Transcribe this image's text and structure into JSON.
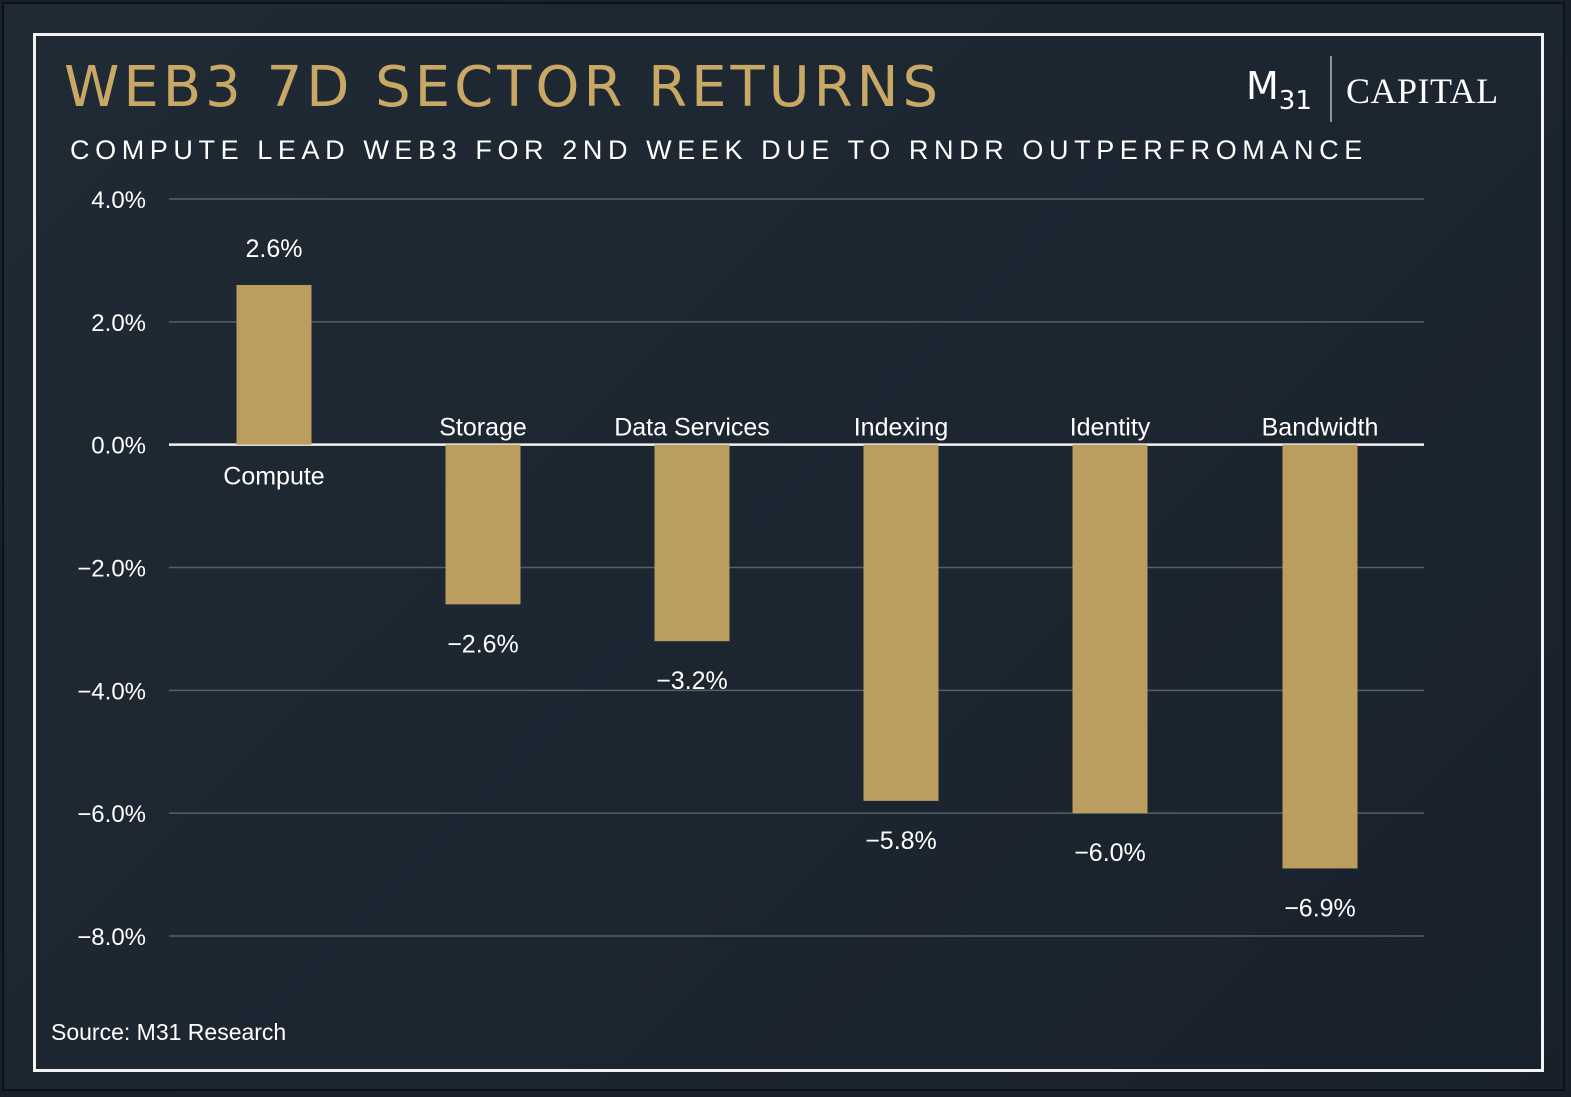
{
  "header": {
    "title": "WEB3 7D SECTOR RETURNS",
    "subtitle": "COMPUTE LEAD WEB3 FOR 2ND WEEK DUE TO RNDR OUTPERFROMANCE"
  },
  "logo": {
    "mark": "M",
    "mark_sub": "31",
    "wordmark": "CAPITAL"
  },
  "footer": {
    "source": "Source: M31 Research"
  },
  "colors": {
    "background": "#1d2731",
    "accent_gold": "#bb9d5f",
    "title_gold": "#c9a866",
    "gridline": "#56606a",
    "text": "#ffffff"
  },
  "chart_data": {
    "type": "bar",
    "title": "WEB3 7D SECTOR RETURNS",
    "subtitle": "COMPUTE LEAD WEB3 FOR 2ND WEEK DUE TO RNDR OUTPERFROMANCE",
    "xlabel": "",
    "ylabel": "",
    "categories": [
      "Compute",
      "Storage",
      "Data Services",
      "Indexing",
      "Identity",
      "Bandwidth"
    ],
    "values": [
      2.6,
      -2.6,
      -3.2,
      -5.8,
      -6.0,
      -6.9
    ],
    "data_labels": [
      "2.6%",
      "−2.6%",
      "−3.2%",
      "−5.8%",
      "−6.0%",
      "−6.9%"
    ],
    "ylim": [
      -8,
      4
    ],
    "yticks": [
      4,
      2,
      0,
      -2,
      -4,
      -6,
      -8
    ],
    "ytick_labels": [
      "4.0%",
      "2.0%",
      "0.0%",
      "−2.0%",
      "−4.0%",
      "−6.0%",
      "−8.0%"
    ],
    "grid": true,
    "legend": "none",
    "bar_color": "#bb9d5f"
  }
}
